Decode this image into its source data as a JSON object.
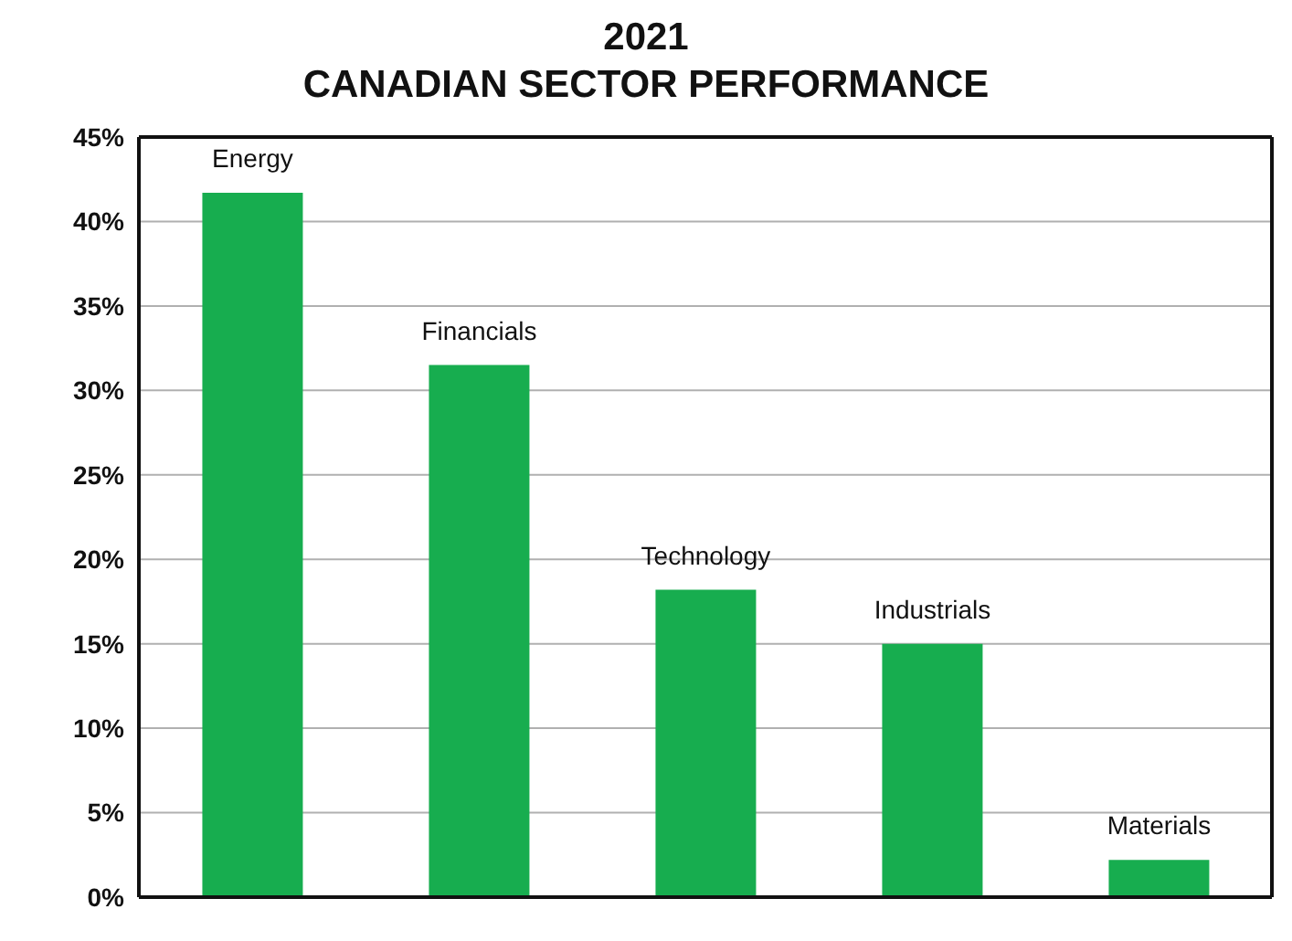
{
  "chart_data": {
    "type": "bar",
    "title": "2021",
    "subtitle": "CANADIAN SECTOR PERFORMANCE",
    "categories": [
      "Energy",
      "Financials",
      "Technology",
      "Industrials",
      "Materials"
    ],
    "values": [
      41.7,
      31.5,
      18.2,
      15.0,
      2.2
    ],
    "color": "#17ad4f",
    "ylim": [
      0,
      45
    ],
    "yticks": [
      {
        "value": 0,
        "label": "0%"
      },
      {
        "value": 5,
        "label": "5%"
      },
      {
        "value": 10,
        "label": "10%"
      },
      {
        "value": 15,
        "label": "15%"
      },
      {
        "value": 20,
        "label": "20%"
      },
      {
        "value": 25,
        "label": "25%"
      },
      {
        "value": 30,
        "label": "30%"
      },
      {
        "value": 35,
        "label": "35%"
      },
      {
        "value": 40,
        "label": "40%"
      },
      {
        "value": 45,
        "label": "45%"
      }
    ],
    "grid": "y",
    "tick_labels": "y"
  }
}
